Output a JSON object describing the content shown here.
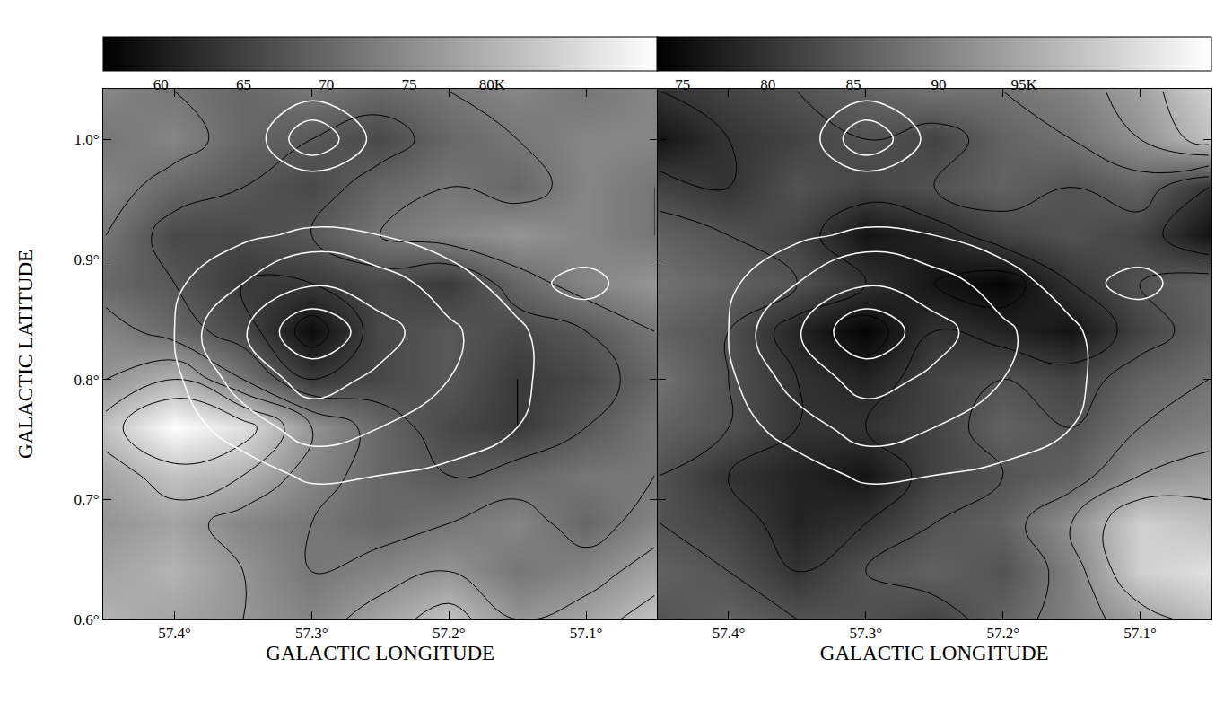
{
  "chart_data": [
    {
      "type": "heatmap",
      "xlabel": "GALACTIC LONGITUDE",
      "ylabel": "GALACTIC LATITUDE",
      "x": [
        57.45,
        57.4,
        57.35,
        57.3,
        57.25,
        57.2,
        57.15,
        57.1,
        57.05
      ],
      "y": [
        0.6,
        0.64,
        0.68,
        0.72,
        0.76,
        0.8,
        0.84,
        0.88,
        0.92,
        0.96,
        1.0,
        1.04
      ],
      "cells": [
        [
          80,
          78,
          76,
          74,
          78,
          82,
          76,
          78,
          82
        ],
        [
          78,
          80,
          76,
          72,
          74,
          76,
          72,
          74,
          78
        ],
        [
          76,
          78,
          74,
          72,
          70,
          72,
          74,
          70,
          74
        ],
        [
          78,
          82,
          80,
          74,
          70,
          68,
          70,
          72,
          72
        ],
        [
          82,
          90,
          86,
          76,
          70,
          66,
          64,
          68,
          72
        ],
        [
          76,
          80,
          72,
          64,
          66,
          68,
          64,
          66,
          70
        ],
        [
          74,
          70,
          66,
          58,
          66,
          68,
          66,
          68,
          72
        ],
        [
          70,
          68,
          64,
          64,
          66,
          64,
          70,
          74,
          76
        ],
        [
          72,
          66,
          66,
          68,
          72,
          74,
          76,
          74,
          72
        ],
        [
          74,
          70,
          68,
          66,
          70,
          72,
          70,
          74,
          72
        ],
        [
          72,
          74,
          70,
          68,
          66,
          70,
          72,
          74,
          74
        ],
        [
          74,
          72,
          70,
          72,
          70,
          72,
          74,
          72,
          74
        ]
      ],
      "contour_levels": [
        60,
        64,
        68,
        72,
        76,
        80,
        84
      ],
      "overlay_cells": [
        [
          0,
          0,
          0,
          0,
          0,
          0,
          0,
          0,
          0
        ],
        [
          0,
          0,
          0,
          0,
          0,
          0,
          0,
          0,
          0
        ],
        [
          0,
          0,
          0,
          0,
          0,
          0,
          0,
          0,
          0
        ],
        [
          0,
          0,
          0.5,
          1.2,
          1,
          0.8,
          0.5,
          0,
          0
        ],
        [
          0,
          0.5,
          1.5,
          2.5,
          2,
          1.5,
          1,
          0.3,
          0
        ],
        [
          0,
          0.8,
          2.5,
          5,
          3.5,
          2,
          1.2,
          0.3,
          0
        ],
        [
          0,
          1,
          3.5,
          12,
          5,
          2.2,
          1.2,
          0,
          0
        ],
        [
          0,
          0.8,
          2,
          3.5,
          2.5,
          1.5,
          0.5,
          1.5,
          0
        ],
        [
          0,
          0,
          0.8,
          1.2,
          1,
          0.5,
          0,
          0,
          0
        ],
        [
          0,
          0,
          0,
          0,
          0,
          0,
          0,
          0,
          0
        ],
        [
          0,
          0,
          0,
          3,
          0.5,
          0,
          0,
          0,
          0
        ],
        [
          0,
          0,
          0,
          0.5,
          0,
          0,
          0,
          0,
          0
        ]
      ],
      "overlay_levels": [
        1,
        2,
        4,
        8
      ],
      "xlim": [
        57.452,
        57.048
      ],
      "ylim": [
        0.6,
        1.042
      ],
      "xticks": [
        {
          "value": 57.4,
          "label": "57.4°"
        },
        {
          "value": 57.3,
          "label": "57.3°"
        },
        {
          "value": 57.2,
          "label": "57.2°"
        },
        {
          "value": 57.1,
          "label": "57.1°"
        }
      ],
      "yticks": [
        {
          "value": 0.6,
          "label": "0.6°"
        },
        {
          "value": 0.7,
          "label": "0.7°"
        },
        {
          "value": 0.8,
          "label": "0.8°"
        },
        {
          "value": 0.9,
          "label": "0.9°"
        },
        {
          "value": 1.0,
          "label": "1.0°"
        }
      ],
      "zlim": [
        56.5,
        90
      ],
      "zticks": [
        60,
        65,
        70,
        75,
        {
          "value": 80,
          "label": "80K"
        }
      ]
    },
    {
      "type": "heatmap",
      "xlabel": "GALACTIC LONGITUDE",
      "x": [
        57.45,
        57.4,
        57.35,
        57.3,
        57.25,
        57.2,
        57.15,
        57.1,
        57.05
      ],
      "y": [
        0.6,
        0.64,
        0.68,
        0.72,
        0.76,
        0.8,
        0.84,
        0.88,
        0.92,
        0.96,
        1.0,
        1.04
      ],
      "cells": [
        [
          84,
          86,
          84,
          84,
          82,
          86,
          90,
          94,
          98
        ],
        [
          86,
          84,
          80,
          84,
          86,
          84,
          90,
          100,
          102
        ],
        [
          84,
          82,
          78,
          80,
          84,
          86,
          92,
          100,
          98
        ],
        [
          84,
          80,
          78,
          76,
          82,
          84,
          86,
          92,
          94
        ],
        [
          86,
          84,
          80,
          80,
          82,
          86,
          84,
          88,
          90
        ],
        [
          88,
          84,
          80,
          78,
          82,
          84,
          82,
          86,
          88
        ],
        [
          86,
          84,
          78,
          74,
          80,
          78,
          76,
          82,
          86
        ],
        [
          88,
          86,
          84,
          80,
          76,
          74,
          80,
          84,
          86
        ],
        [
          86,
          84,
          82,
          76,
          78,
          82,
          84,
          82,
          76
        ],
        [
          82,
          80,
          84,
          82,
          84,
          86,
          84,
          86,
          80
        ],
        [
          76,
          80,
          82,
          84,
          82,
          86,
          88,
          92,
          98
        ],
        [
          80,
          82,
          84,
          86,
          88,
          88,
          90,
          94,
          100
        ]
      ],
      "contour_levels": [
        76,
        80,
        84,
        88,
        92,
        96
      ],
      "overlay_cells": [
        [
          0,
          0,
          0,
          0,
          0,
          0,
          0,
          0,
          0
        ],
        [
          0,
          0,
          0,
          0,
          0,
          0,
          0,
          0,
          0
        ],
        [
          0,
          0,
          0,
          0,
          0,
          0,
          0,
          0,
          0
        ],
        [
          0,
          0,
          0.5,
          1.2,
          1,
          0.8,
          0.5,
          0,
          0
        ],
        [
          0,
          0.5,
          1.5,
          2.5,
          2,
          1.5,
          1,
          0.3,
          0
        ],
        [
          0,
          0.8,
          2.5,
          5,
          3.5,
          2,
          1.2,
          0.3,
          0
        ],
        [
          0,
          1,
          3.5,
          12,
          5,
          2.2,
          1.2,
          0,
          0
        ],
        [
          0,
          0.8,
          2,
          3.5,
          2.5,
          1.5,
          0.5,
          1.5,
          0
        ],
        [
          0,
          0,
          0.8,
          1.2,
          1,
          0.5,
          0,
          0,
          0
        ],
        [
          0,
          0,
          0,
          0,
          0,
          0,
          0,
          0,
          0
        ],
        [
          0,
          0,
          0,
          3,
          0.5,
          0,
          0,
          0,
          0
        ],
        [
          0,
          0,
          0,
          0.5,
          0,
          0,
          0,
          0,
          0
        ]
      ],
      "overlay_levels": [
        1,
        2,
        4,
        8
      ],
      "xlim": [
        57.452,
        57.048
      ],
      "ylim": [
        0.6,
        1.042
      ],
      "xticks": [
        {
          "value": 57.4,
          "label": "57.4°"
        },
        {
          "value": 57.3,
          "label": "57.3°"
        },
        {
          "value": 57.2,
          "label": "57.2°"
        },
        {
          "value": 57.1,
          "label": "57.1°"
        }
      ],
      "yticks": [
        0.6,
        0.7,
        0.8,
        0.9,
        1.0
      ],
      "tick_labels": "x",
      "zlim": [
        73.5,
        106
      ],
      "zticks": [
        75,
        80,
        85,
        90,
        {
          "value": 95,
          "label": "95K"
        }
      ]
    }
  ]
}
